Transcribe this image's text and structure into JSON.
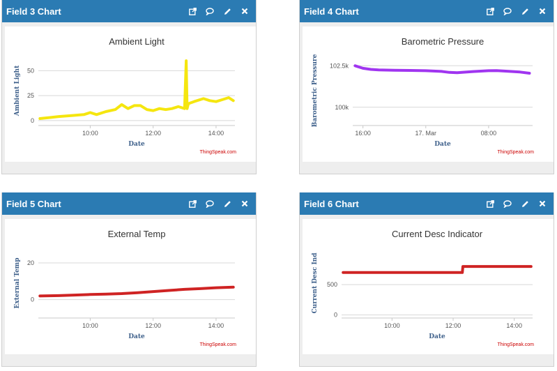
{
  "panels": [
    {
      "title": "Field 3 Chart",
      "chart_title": "Ambient Light",
      "y_axis_title": "Ambient Light",
      "x_axis_title": "Date",
      "credit": "ThingSpeak.com",
      "color": "#f5e60f"
    },
    {
      "title": "Field 4 Chart",
      "chart_title": "Barometric Pressure",
      "y_axis_title": "Barometric Pressure",
      "x_axis_title": "Date",
      "credit": "ThingSpeak.com",
      "color": "#a035f0"
    },
    {
      "title": "Field 5 Chart",
      "chart_title": "External Temp",
      "y_axis_title": "External Temp",
      "x_axis_title": "Date",
      "credit": "ThingSpeak.com",
      "color": "#cf2323"
    },
    {
      "title": "Field 6 Chart",
      "chart_title": "Current Desc Indicator",
      "y_axis_title": "Current Desc Ind",
      "x_axis_title": "Date",
      "credit": "ThingSpeak.com",
      "color": "#cf2323"
    }
  ],
  "header_icons": [
    "popout-icon",
    "comment-icon",
    "pencil-icon",
    "close-icon"
  ],
  "chart_data": [
    {
      "type": "line",
      "title": "Ambient Light",
      "xlabel": "Date",
      "ylabel": "Ambient Light",
      "x_ticks": [
        "10:00",
        "12:00",
        "14:00"
      ],
      "x_tick_hours": [
        10,
        12,
        14
      ],
      "y_ticks": [
        0,
        25,
        50
      ],
      "y_tick_labels": [
        "0",
        "25",
        "50"
      ],
      "xlim": [
        8.35,
        14.6
      ],
      "ylim": [
        -5,
        65
      ],
      "x": [
        8.4,
        8.7,
        9.0,
        9.4,
        9.8,
        10.0,
        10.2,
        10.5,
        10.8,
        11.0,
        11.2,
        11.4,
        11.6,
        11.8,
        12.0,
        12.2,
        12.4,
        12.6,
        12.8,
        13.0,
        13.05,
        13.08,
        13.12,
        13.3,
        13.6,
        13.8,
        14.0,
        14.2,
        14.4,
        14.55
      ],
      "y": [
        2,
        3,
        4,
        5,
        6,
        8,
        6,
        9,
        11,
        16,
        12,
        15,
        15,
        11,
        10,
        12,
        11,
        12,
        14,
        12,
        60,
        12,
        17,
        19,
        22,
        20,
        19,
        21,
        23,
        20
      ]
    },
    {
      "type": "line",
      "title": "Barometric Pressure",
      "xlabel": "Date",
      "ylabel": "Barometric Pressure",
      "x_ticks": [
        "16:00",
        "17. Mar",
        "08:00"
      ],
      "x_tick_hours": [
        16,
        24,
        32
      ],
      "y_ticks": [
        100000,
        102500
      ],
      "y_tick_labels": [
        "100k",
        "102.5k"
      ],
      "xlim": [
        14.7,
        37.6
      ],
      "ylim": [
        98900,
        103100
      ],
      "x": [
        15,
        16,
        17,
        18,
        20,
        22,
        24,
        26,
        27,
        28,
        30,
        32,
        33,
        34,
        36,
        37.2
      ],
      "y": [
        102500,
        102350,
        102280,
        102250,
        102230,
        102220,
        102200,
        102160,
        102100,
        102080,
        102150,
        102200,
        102210,
        102180,
        102120,
        102050
      ]
    },
    {
      "type": "line",
      "title": "External Temp",
      "xlabel": "Date",
      "ylabel": "External Temp",
      "x_ticks": [
        "10:00",
        "12:00",
        "14:00"
      ],
      "x_tick_hours": [
        10,
        12,
        14
      ],
      "y_ticks": [
        0,
        20
      ],
      "y_tick_labels": [
        "0",
        "20"
      ],
      "xlim": [
        8.35,
        14.6
      ],
      "ylim": [
        -10,
        28
      ],
      "x": [
        8.4,
        9.0,
        9.5,
        10.0,
        10.5,
        11.0,
        11.5,
        12.0,
        12.5,
        13.0,
        13.5,
        14.0,
        14.55
      ],
      "y": [
        2,
        2.2,
        2.5,
        2.8,
        3.0,
        3.3,
        3.8,
        4.4,
        5.0,
        5.6,
        6.0,
        6.5,
        6.8
      ]
    },
    {
      "type": "line",
      "title": "Current Desc Indicator",
      "xlabel": "Date",
      "ylabel": "Current Desc Ind",
      "x_ticks": [
        "10:00",
        "12:00",
        "14:00"
      ],
      "x_tick_hours": [
        10,
        12,
        14
      ],
      "y_ticks": [
        0,
        500
      ],
      "y_tick_labels": [
        "0",
        "500"
      ],
      "xlim": [
        8.35,
        14.6
      ],
      "ylim": [
        -50,
        1100
      ],
      "x": [
        8.4,
        12.3,
        12.32,
        14.55
      ],
      "y": [
        700,
        700,
        800,
        800
      ]
    }
  ]
}
